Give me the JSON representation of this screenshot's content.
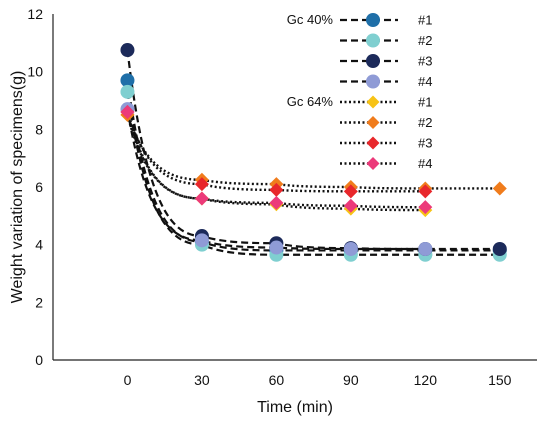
{
  "chart_data": {
    "type": "scatter",
    "xlabel": "Time (min)",
    "ylabel": "Weight variation of specimens(g)",
    "x_ticks": [
      0,
      30,
      60,
      90,
      120,
      150
    ],
    "y_ticks": [
      0,
      2,
      4,
      6,
      8,
      10,
      12
    ],
    "xlim": [
      -30,
      165
    ],
    "ylim": [
      0,
      12
    ],
    "grid": "none",
    "legend_position": "top-right, inside",
    "groups": [
      {
        "label": "Gc 40%",
        "series": [
          {
            "name": "#1",
            "marker": "circle",
            "color": "#1f6fa8",
            "x": [
              0,
              30,
              60,
              90,
              120,
              150
            ],
            "y": [
              9.7,
              4.1,
              3.8,
              3.8,
              3.8,
              3.8
            ]
          },
          {
            "name": "#2",
            "marker": "circle",
            "color": "#7fcfd0",
            "x": [
              0,
              30,
              60,
              90,
              120,
              150
            ],
            "y": [
              9.3,
              4.0,
              3.65,
              3.65,
              3.65,
              3.65
            ]
          },
          {
            "name": "#3",
            "marker": "circle",
            "color": "#1c2a5a",
            "x": [
              0,
              30,
              60,
              90,
              120,
              150
            ],
            "y": [
              10.75,
              4.3,
              4.05,
              3.88,
              3.85,
              3.85
            ]
          },
          {
            "name": "#4",
            "marker": "circle",
            "color": "#8f9bd6",
            "x": [
              0,
              30,
              60,
              90,
              120
            ],
            "y": [
              8.7,
              4.15,
              3.9,
              3.85,
              3.85
            ]
          }
        ]
      },
      {
        "label": "Gc 64%",
        "series": [
          {
            "name": "#1",
            "marker": "diamond",
            "color": "#f7c316",
            "x": [
              0,
              30,
              60,
              90,
              120
            ],
            "y": [
              8.5,
              5.6,
              5.4,
              5.25,
              5.2
            ]
          },
          {
            "name": "#2",
            "marker": "diamond",
            "color": "#f07c1c",
            "x": [
              0,
              30,
              60,
              90,
              120,
              150
            ],
            "y": [
              8.5,
              6.25,
              6.1,
              6.0,
              5.95,
              5.95
            ]
          },
          {
            "name": "#3",
            "marker": "diamond",
            "color": "#e8272b",
            "x": [
              0,
              30,
              60,
              90,
              120
            ],
            "y": [
              8.6,
              6.1,
              5.9,
              5.85,
              5.85
            ]
          },
          {
            "name": "#4",
            "marker": "diamond",
            "color": "#ec3a7a",
            "x": [
              0,
              30,
              60,
              90,
              120
            ],
            "y": [
              8.6,
              5.6,
              5.45,
              5.35,
              5.3
            ]
          }
        ]
      }
    ]
  }
}
